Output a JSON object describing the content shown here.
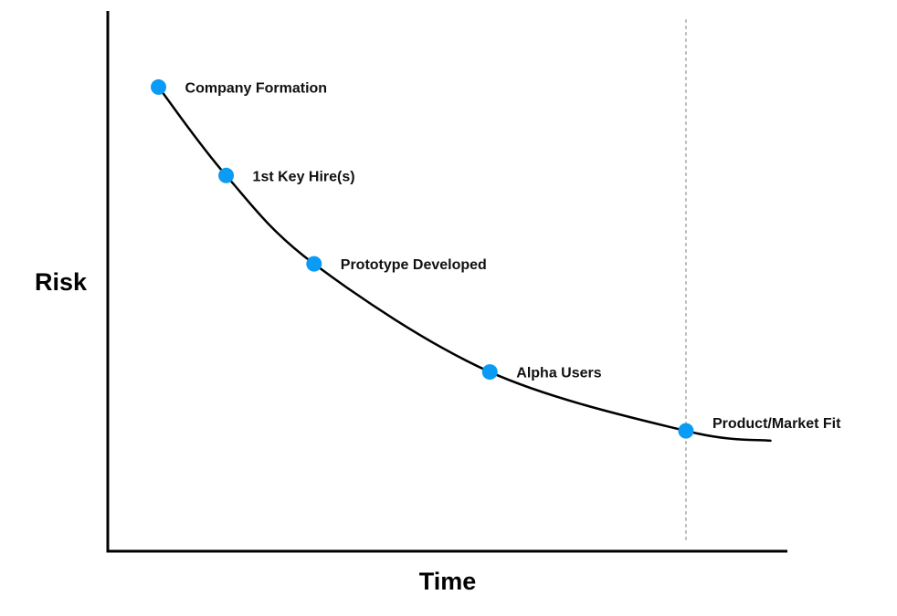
{
  "chart_data": {
    "type": "line",
    "title": "",
    "xlabel": "Time",
    "ylabel": "Risk",
    "grid": false,
    "legend": "none",
    "points": [
      {
        "label": "Company Formation",
        "x": 0.5,
        "y": 9.2
      },
      {
        "label": "1st Key Hire(s)",
        "x": 1.5,
        "y": 7.4
      },
      {
        "label": "Prototype Developed",
        "x": 2.8,
        "y": 5.6
      },
      {
        "label": "Alpha Users",
        "x": 5.4,
        "y": 3.4
      },
      {
        "label": "Product/Market Fit",
        "x": 8.3,
        "y": 2.2
      }
    ],
    "curve_end": {
      "x": 9.55,
      "y": 2.0
    },
    "reference_line": {
      "x": 8.3,
      "style": "dotted"
    },
    "xlim": [
      -0.25,
      9.8
    ],
    "ylim": [
      -0.25,
      10.75
    ],
    "colors": {
      "axis": "#000000",
      "curve": "#000000",
      "marker": "#0a9bf5",
      "reference_line": "#bbbbbb"
    }
  }
}
